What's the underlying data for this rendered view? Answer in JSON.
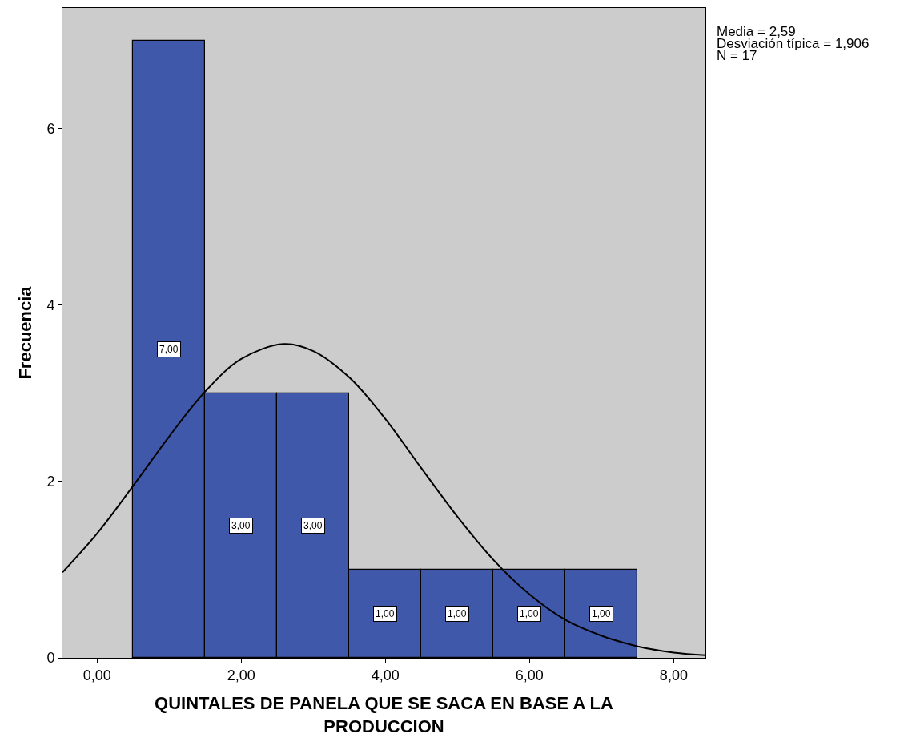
{
  "chart_data": {
    "type": "histogram",
    "xlabel": "QUINTALES DE PANELA QUE SE SACA EN BASE A LA PRODUCCION",
    "ylabel": "Frecuencia",
    "bins": [
      0.5,
      1.5,
      2.5,
      3.5,
      4.5,
      5.5,
      6.5,
      7.5
    ],
    "values": [
      7,
      3,
      3,
      1,
      1,
      1,
      1
    ],
    "value_labels": [
      "7,00",
      "3,00",
      "3,00",
      "1,00",
      "1,00",
      "1,00",
      "1,00"
    ],
    "color": "#3f58a9",
    "series": [
      {
        "type": "line",
        "color": "#000000",
        "x": [
          -0.48,
          0,
          0.5,
          1,
          1.5,
          2,
          2.59,
          3,
          3.5,
          4,
          4.5,
          5,
          5.5,
          6,
          6.5,
          7,
          7.5,
          8,
          8.44
        ],
        "values": [
          0.97,
          1.41,
          1.95,
          2.51,
          3.02,
          3.39,
          3.56,
          3.48,
          3.18,
          2.71,
          2.15,
          1.6,
          1.11,
          0.72,
          0.43,
          0.25,
          0.13,
          0.06,
          0.03
        ]
      }
    ],
    "xlim": [
      -0.48,
      8.44
    ],
    "xticks": [
      {
        "value": 0,
        "label": "0,00"
      },
      {
        "value": 2,
        "label": "2,00"
      },
      {
        "value": 4,
        "label": "4,00"
      },
      {
        "value": 6,
        "label": "6,00"
      },
      {
        "value": 8,
        "label": "8,00"
      }
    ],
    "ylim": [
      0,
      7.37
    ],
    "yticks": [
      0,
      2,
      4,
      6
    ],
    "grid": false,
    "marker": "none",
    "line_style": "solid",
    "annotations": [
      "Media = 2,59",
      "Desviación típica = 1,906",
      "N = 17"
    ]
  }
}
